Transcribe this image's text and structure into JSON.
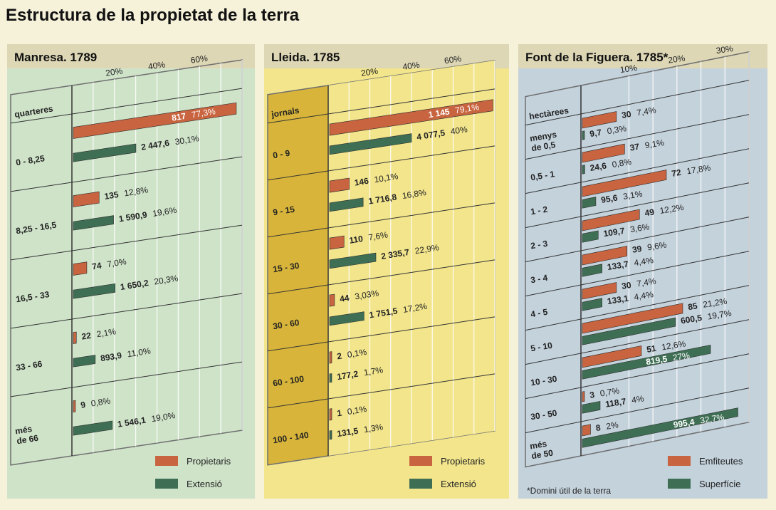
{
  "title": "Estructura de la propietat de la terra",
  "colors": {
    "owners": "#c8643f",
    "extent": "#3e6f54",
    "panel1": "#cfe3c9",
    "panel2": "#f2e58c",
    "panel2_band": "#d8b53a",
    "panel3": "#c4d2dc",
    "header": "#ddd7b6",
    "frame": "#6f6f6f",
    "paper": "#f6f1d9"
  },
  "chart_data": [
    {
      "type": "bar",
      "title": "Manresa. 1789",
      "unit_label": "quarteres",
      "categories": [
        "0 - 8,25",
        "8,25 - 16,5",
        "16,5 - 33",
        "33 - 66",
        "més de 66"
      ],
      "xticks": [
        "20%",
        "40%",
        "60%"
      ],
      "xlim": [
        0,
        80
      ],
      "series": [
        {
          "name": "Propietaris",
          "values": [
            77.3,
            12.8,
            7.0,
            2.1,
            0.8
          ],
          "abs": [
            "817",
            "135",
            "74",
            "22",
            "9"
          ],
          "pct": [
            "77,3%",
            "12,8%",
            "7,0%",
            "2,1%",
            "0,8%"
          ]
        },
        {
          "name": "Extensió",
          "values": [
            30.1,
            19.6,
            20.3,
            11.0,
            19.0
          ],
          "abs": [
            "2 447,6",
            "1 590,9",
            "1 650,2",
            "893,9",
            "1 546,1"
          ],
          "pct": [
            "30,1%",
            "19,6%",
            "20,3%",
            "11,0%",
            "19,0%"
          ]
        }
      ]
    },
    {
      "type": "bar",
      "title": "Lleida. 1785",
      "unit_label": "jornals",
      "categories": [
        "0 - 9",
        "9 - 15",
        "15 - 30",
        "30 - 60",
        "60 - 100",
        "100 - 140"
      ],
      "xticks": [
        "20%",
        "40%",
        "60%"
      ],
      "xlim": [
        0,
        80
      ],
      "series": [
        {
          "name": "Propietaris",
          "values": [
            79.1,
            10.1,
            7.6,
            3.03,
            0.1,
            0.1
          ],
          "abs": [
            "1 145",
            "146",
            "110",
            "44",
            "2",
            "1"
          ],
          "pct": [
            "79,1%",
            "10,1%",
            "7,6%",
            "3,03%",
            "0,1%",
            "0,1%"
          ]
        },
        {
          "name": "Extensió",
          "values": [
            40,
            16.8,
            22.9,
            17.2,
            1.7,
            1.3
          ],
          "abs": [
            "4 077,5",
            "1 716,8",
            "2 335,7",
            "1 751,5",
            "177,2",
            "131,5"
          ],
          "pct": [
            "40%",
            "16,8%",
            "22,9%",
            "17,2%",
            "1,7%",
            "1,3%"
          ]
        }
      ]
    },
    {
      "type": "bar",
      "title": "Font de la Figuera. 1785*",
      "unit_label": "hectàrees",
      "categories": [
        "menys de 0,5",
        "0,5 - 1",
        "1 - 2",
        "2 - 3",
        "3 - 4",
        "4 - 5",
        "5 - 10",
        "10 - 30",
        "30 - 50",
        "més de 50"
      ],
      "xticks": [
        "10%",
        "20%",
        "30%"
      ],
      "xlim": [
        0,
        35
      ],
      "series": [
        {
          "name": "Emfiteutes",
          "values": [
            7.4,
            9.1,
            17.8,
            12.2,
            9.6,
            7.4,
            21.2,
            12.6,
            0.7,
            2
          ],
          "abs": [
            "30",
            "37",
            "72",
            "49",
            "39",
            "30",
            "85",
            "51",
            "3",
            "8"
          ],
          "pct": [
            "7,4%",
            "9,1%",
            "17,8%",
            "12,2%",
            "9,6%",
            "7,4%",
            "21,2%",
            "12,6%",
            "0,7%",
            "2%"
          ]
        },
        {
          "name": "Superfície",
          "values": [
            0.3,
            0.8,
            3.1,
            3.6,
            4.4,
            4.4,
            19.7,
            27,
            4,
            32.7
          ],
          "abs": [
            "9,7",
            "24,6",
            "95,6",
            "109,7",
            "133,7",
            "133,1",
            "600,5",
            "819,5",
            "118,7",
            "995,4"
          ],
          "pct": [
            "0,3%",
            "0,8%",
            "3,1%",
            "3,6%",
            "4,4%",
            "4,4%",
            "19,7%",
            "27%",
            "4%",
            "32,7%"
          ]
        }
      ],
      "footnote": "*Domini útil de la terra"
    }
  ]
}
